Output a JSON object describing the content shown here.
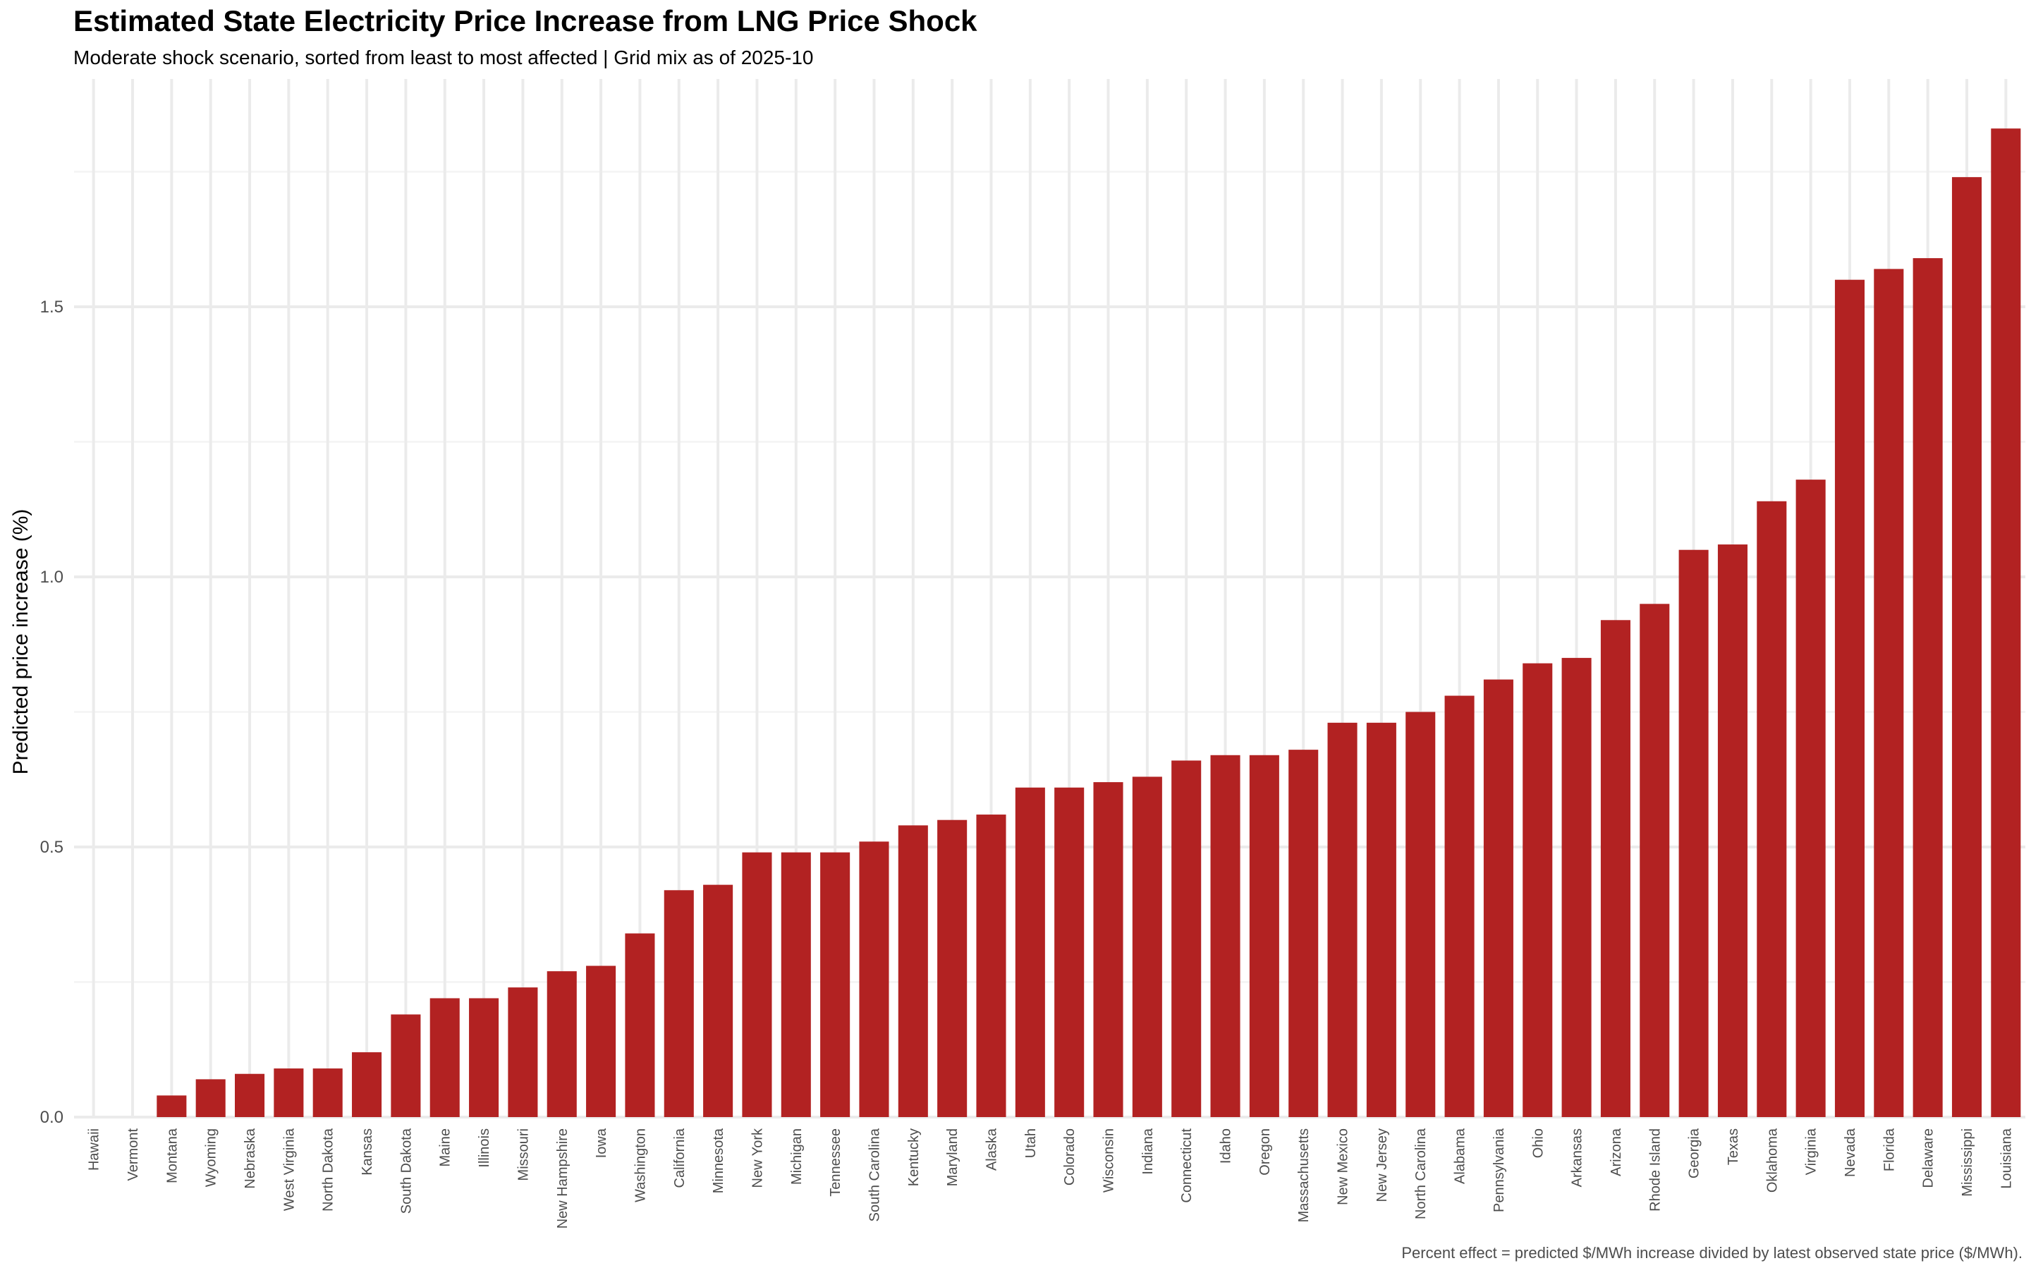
{
  "chart_data": {
    "type": "bar",
    "title": "Estimated State Electricity Price Increase from LNG Price Shock",
    "subtitle": "Moderate shock scenario, sorted from least to most affected | Grid mix as of 2025-10",
    "xlabel": "",
    "ylabel": "Predicted price increase (%)",
    "caption": "Percent effect = predicted $/MWh increase divided by latest observed state price ($/MWh).",
    "ylim": [
      0,
      1.92
    ],
    "yticks": [
      0.0,
      0.5,
      1.0,
      1.5
    ],
    "ytick_labels": [
      "0.0",
      "0.5",
      "1.0",
      "1.5"
    ],
    "grid": true,
    "bar_color": "#B22222",
    "categories": [
      "Hawaii",
      "Vermont",
      "Montana",
      "Wyoming",
      "Nebraska",
      "West Virginia",
      "North Dakota",
      "Kansas",
      "South Dakota",
      "Maine",
      "Illinois",
      "Missouri",
      "New Hampshire",
      "Iowa",
      "Washington",
      "California",
      "Minnesota",
      "New York",
      "Michigan",
      "Tennessee",
      "South Carolina",
      "Kentucky",
      "Maryland",
      "Alaska",
      "Utah",
      "Colorado",
      "Wisconsin",
      "Indiana",
      "Connecticut",
      "Idaho",
      "Oregon",
      "Massachusetts",
      "New Mexico",
      "New Jersey",
      "North Carolina",
      "Alabama",
      "Pennsylvania",
      "Ohio",
      "Arkansas",
      "Arizona",
      "Rhode Island",
      "Georgia",
      "Texas",
      "Oklahoma",
      "Virginia",
      "Nevada",
      "Florida",
      "Delaware",
      "Mississippi",
      "Louisiana"
    ],
    "values": [
      0.0,
      0.0,
      0.04,
      0.07,
      0.08,
      0.09,
      0.09,
      0.12,
      0.19,
      0.22,
      0.22,
      0.24,
      0.27,
      0.28,
      0.34,
      0.42,
      0.43,
      0.49,
      0.49,
      0.49,
      0.51,
      0.54,
      0.55,
      0.56,
      0.61,
      0.61,
      0.62,
      0.63,
      0.66,
      0.67,
      0.67,
      0.68,
      0.73,
      0.73,
      0.75,
      0.78,
      0.81,
      0.84,
      0.85,
      0.92,
      0.95,
      1.05,
      1.06,
      1.14,
      1.18,
      1.55,
      1.57,
      1.59,
      1.74,
      1.83
    ]
  }
}
